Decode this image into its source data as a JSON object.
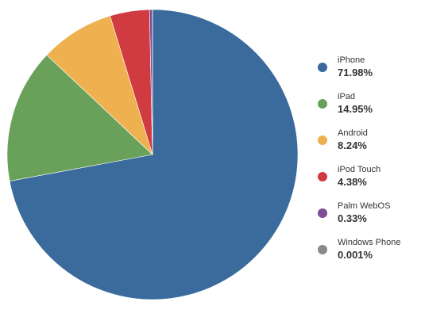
{
  "chart_data": {
    "type": "pie",
    "title": "",
    "legend_position": "right",
    "slices": [
      {
        "name": "iPhone",
        "value": 71.98,
        "label": "71.98%",
        "color": "#3a6b9c"
      },
      {
        "name": "iPad",
        "value": 14.95,
        "label": "14.95%",
        "color": "#6aa15a"
      },
      {
        "name": "Android",
        "value": 8.24,
        "label": "8.24%",
        "color": "#efb14f"
      },
      {
        "name": "iPod Touch",
        "value": 4.38,
        "label": "4.38%",
        "color": "#cf3b40"
      },
      {
        "name": "Palm WebOS",
        "value": 0.33,
        "label": "0.33%",
        "color": "#7d4d97"
      },
      {
        "name": "Windows Phone",
        "value": 0.001,
        "label": "0.001%",
        "color": "#8a8a8a"
      }
    ]
  }
}
